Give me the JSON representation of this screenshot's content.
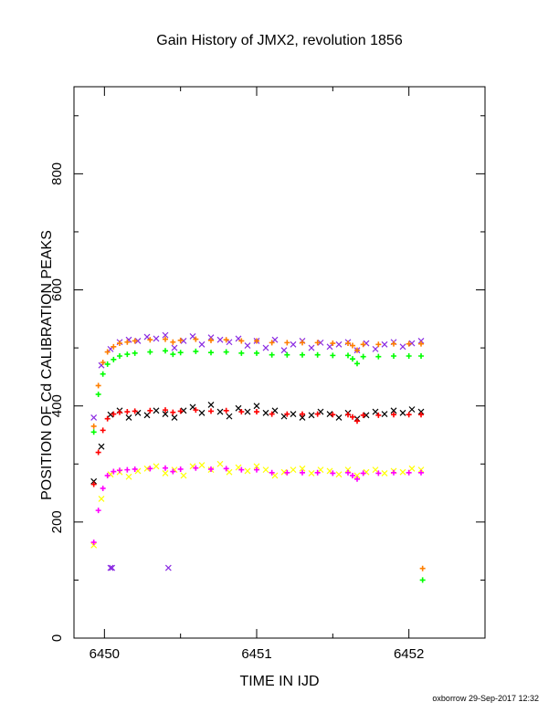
{
  "chart_data": {
    "type": "scatter",
    "title": "Gain History of JMX2, revolution 1856",
    "xlabel": "TIME IN IJD",
    "ylabel": "POSITION OF Cd CALIBRATION PEAKS",
    "xlim": [
      6449.8,
      6452.5
    ],
    "ylim": [
      0,
      950
    ],
    "xticks": [
      6450,
      6451,
      6452
    ],
    "yticks": [
      0,
      200,
      400,
      600,
      800
    ],
    "grid": false,
    "series": [
      {
        "marker": "x",
        "color": "#8a2be2",
        "x": [
          6449.93,
          6449.98,
          6450.04,
          6450.1,
          6450.16,
          6450.22,
          6450.28,
          6450.34,
          6450.4,
          6450.46,
          6450.52,
          6450.58,
          6450.64,
          6450.7,
          6450.76,
          6450.82,
          6450.88,
          6450.94,
          6451.0,
          6451.06,
          6451.12,
          6451.18,
          6451.24,
          6451.3,
          6451.36,
          6451.42,
          6451.48,
          6451.54,
          6451.6,
          6451.66,
          6451.72,
          6451.78,
          6451.84,
          6451.9,
          6451.96,
          6452.02,
          6452.08
        ],
        "values": [
          380,
          470,
          498,
          510,
          514,
          512,
          519,
          516,
          522,
          500,
          512,
          520,
          506,
          518,
          514,
          510,
          516,
          504,
          512,
          500,
          514,
          496,
          506,
          512,
          500,
          509,
          502,
          506,
          510,
          496,
          508,
          498,
          506,
          510,
          502,
          508,
          512
        ]
      },
      {
        "marker": "x",
        "color": "#000000",
        "x": [
          6449.93,
          6449.98,
          6450.04,
          6450.1,
          6450.16,
          6450.22,
          6450.28,
          6450.34,
          6450.4,
          6450.46,
          6450.52,
          6450.58,
          6450.64,
          6450.7,
          6450.76,
          6450.82,
          6450.88,
          6450.94,
          6451.0,
          6451.06,
          6451.12,
          6451.18,
          6451.24,
          6451.3,
          6451.36,
          6451.42,
          6451.48,
          6451.54,
          6451.6,
          6451.66,
          6451.72,
          6451.78,
          6451.84,
          6451.9,
          6451.96,
          6452.02,
          6452.08
        ],
        "values": [
          270,
          330,
          385,
          392,
          380,
          388,
          384,
          392,
          386,
          380,
          392,
          398,
          388,
          402,
          390,
          382,
          396,
          390,
          400,
          388,
          392,
          382,
          386,
          380,
          384,
          390,
          386,
          380,
          388,
          378,
          384,
          390,
          386,
          392,
          388,
          394,
          390
        ]
      },
      {
        "marker": "x",
        "color": "#ffff00",
        "x": [
          6449.93,
          6449.98,
          6450.04,
          6450.1,
          6450.16,
          6450.22,
          6450.28,
          6450.34,
          6450.4,
          6450.46,
          6450.52,
          6450.58,
          6450.64,
          6450.7,
          6450.76,
          6450.82,
          6450.88,
          6450.94,
          6451.0,
          6451.06,
          6451.12,
          6451.18,
          6451.24,
          6451.3,
          6451.36,
          6451.42,
          6451.48,
          6451.54,
          6451.6,
          6451.66,
          6451.72,
          6451.78,
          6451.84,
          6451.9,
          6451.96,
          6452.02,
          6452.08
        ],
        "values": [
          160,
          240,
          282,
          286,
          278,
          288,
          292,
          296,
          284,
          290,
          280,
          296,
          298,
          290,
          300,
          286,
          294,
          288,
          296,
          290,
          280,
          286,
          290,
          292,
          284,
          290,
          288,
          282,
          290,
          280,
          286,
          290,
          284,
          288,
          286,
          292,
          290
        ]
      },
      {
        "marker": "plus",
        "color": "#ff7f00",
        "x": [
          6449.93,
          6449.96,
          6449.99,
          6450.02,
          6450.06,
          6450.1,
          6450.15,
          6450.2,
          6450.3,
          6450.4,
          6450.45,
          6450.5,
          6450.6,
          6450.7,
          6450.8,
          6450.9,
          6451.0,
          6451.1,
          6451.2,
          6451.3,
          6451.4,
          6451.5,
          6451.6,
          6451.63,
          6451.66,
          6451.7,
          6451.8,
          6451.9,
          6452.0,
          6452.08
        ],
        "values": [
          365,
          435,
          475,
          493,
          502,
          508,
          510,
          512,
          514,
          515,
          510,
          513,
          515,
          513,
          514,
          512,
          512,
          509,
          509,
          509,
          509,
          508,
          508,
          504,
          496,
          506,
          506,
          507,
          507,
          507
        ]
      },
      {
        "marker": "plus",
        "color": "#00ff00",
        "x": [
          6449.93,
          6449.96,
          6449.99,
          6450.02,
          6450.06,
          6450.1,
          6450.15,
          6450.2,
          6450.3,
          6450.4,
          6450.45,
          6450.5,
          6450.6,
          6450.7,
          6450.8,
          6450.9,
          6451.0,
          6451.1,
          6451.2,
          6451.3,
          6451.4,
          6451.5,
          6451.6,
          6451.63,
          6451.66,
          6451.7,
          6451.8,
          6451.9,
          6452.0,
          6452.08
        ],
        "values": [
          355,
          420,
          455,
          472,
          480,
          486,
          489,
          491,
          493,
          495,
          489,
          492,
          494,
          492,
          493,
          491,
          491,
          488,
          488,
          488,
          488,
          487,
          487,
          481,
          473,
          485,
          485,
          486,
          486,
          486
        ]
      },
      {
        "marker": "plus",
        "color": "#ff0000",
        "x": [
          6449.93,
          6449.96,
          6449.99,
          6450.02,
          6450.06,
          6450.1,
          6450.15,
          6450.2,
          6450.3,
          6450.4,
          6450.45,
          6450.5,
          6450.6,
          6450.7,
          6450.8,
          6450.9,
          6451.0,
          6451.1,
          6451.2,
          6451.3,
          6451.4,
          6451.5,
          6451.6,
          6451.63,
          6451.66,
          6451.7,
          6451.8,
          6451.9,
          6452.0,
          6452.08
        ],
        "values": [
          265,
          320,
          358,
          378,
          386,
          389,
          390,
          391,
          392,
          393,
          389,
          391,
          393,
          391,
          392,
          390,
          390,
          386,
          386,
          386,
          386,
          385,
          385,
          381,
          374,
          384,
          384,
          385,
          385,
          385
        ]
      },
      {
        "marker": "plus",
        "color": "#ff00ff",
        "x": [
          6449.93,
          6449.96,
          6449.99,
          6450.02,
          6450.06,
          6450.1,
          6450.15,
          6450.2,
          6450.3,
          6450.4,
          6450.45,
          6450.5,
          6450.6,
          6450.7,
          6450.8,
          6450.9,
          6451.0,
          6451.1,
          6451.2,
          6451.3,
          6451.4,
          6451.5,
          6451.6,
          6451.63,
          6451.66,
          6451.7,
          6451.8,
          6451.9,
          6452.0,
          6452.08
        ],
        "values": [
          165,
          220,
          258,
          280,
          287,
          289,
          290,
          291,
          292,
          293,
          287,
          291,
          293,
          291,
          292,
          290,
          290,
          285,
          285,
          285,
          285,
          284,
          285,
          280,
          274,
          284,
          284,
          285,
          285,
          285
        ]
      },
      {
        "marker": "x",
        "color": "#8a2be2",
        "x": [
          6450.04,
          6450.05,
          6450.42
        ],
        "values": [
          121,
          121,
          121
        ]
      },
      {
        "marker": "plus",
        "color": "#ff7f00",
        "x": [
          6452.09
        ],
        "values": [
          120
        ]
      },
      {
        "marker": "plus",
        "color": "#00ff00",
        "x": [
          6452.09
        ],
        "values": [
          100
        ]
      }
    ]
  },
  "footer": "oxborrow 29-Sep-2017 12:32"
}
